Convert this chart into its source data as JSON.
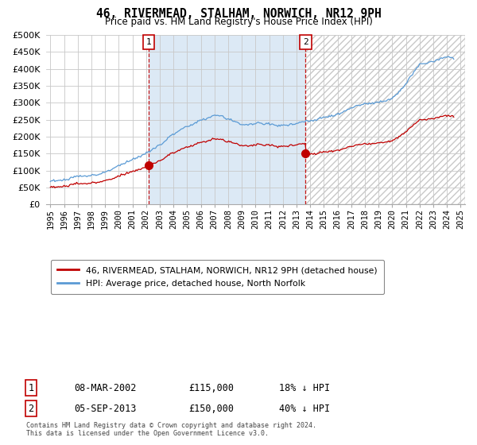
{
  "title": "46, RIVERMEAD, STALHAM, NORWICH, NR12 9PH",
  "subtitle": "Price paid vs. HM Land Registry's House Price Index (HPI)",
  "ylabel_ticks": [
    "£0",
    "£50K",
    "£100K",
    "£150K",
    "£200K",
    "£250K",
    "£300K",
    "£350K",
    "£400K",
    "£450K",
    "£500K"
  ],
  "ytick_values": [
    0,
    50000,
    100000,
    150000,
    200000,
    250000,
    300000,
    350000,
    400000,
    450000,
    500000
  ],
  "xlim_start": 1994.7,
  "xlim_end": 2025.3,
  "ylim": [
    0,
    500000
  ],
  "purchase1": {
    "date_num": 2002.18,
    "price": 115000,
    "label": "1",
    "date_str": "08-MAR-2002",
    "pct": "18% ↓ HPI"
  },
  "purchase2": {
    "date_num": 2013.67,
    "price": 150000,
    "label": "2",
    "date_str": "05-SEP-2013",
    "pct": "40% ↓ HPI"
  },
  "legend_line1": "46, RIVERMEAD, STALHAM, NORWICH, NR12 9PH (detached house)",
  "legend_line2": "HPI: Average price, detached house, North Norfolk",
  "footer": "Contains HM Land Registry data © Crown copyright and database right 2024.\nThis data is licensed under the Open Government Licence v3.0.",
  "hpi_color": "#5b9bd5",
  "price_color": "#c00000",
  "marker_color": "#c00000",
  "vline_color": "#c00000",
  "shade_color": "#dce9f5",
  "background_color": "#ffffff",
  "grid_color": "#c8c8c8"
}
